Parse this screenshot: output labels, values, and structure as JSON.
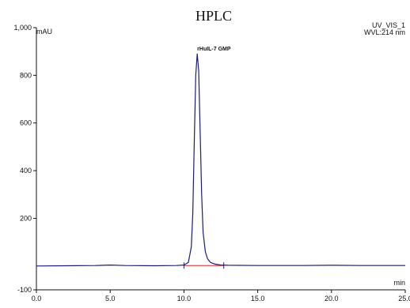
{
  "chart_data": {
    "type": "line",
    "title": "HPLC",
    "xlabel": "min",
    "ylabel": "mAU",
    "xlim": [
      0,
      25
    ],
    "ylim": [
      -100,
      1000
    ],
    "x_ticks": [
      0,
      5,
      10,
      15,
      20,
      25
    ],
    "x_tick_labels": [
      "0.0",
      "5.0",
      "10.0",
      "15.0",
      "20.0",
      "25.0"
    ],
    "y_ticks": [
      -100,
      200,
      400,
      600,
      800,
      1000
    ],
    "y_tick_labels": [
      "-100",
      "200",
      "400",
      "600",
      "800",
      "1,000"
    ],
    "channel_label": "UV_VIS_1",
    "wavelength_label": "WVL:214 nm",
    "peaks": [
      {
        "name": "rHuIL-7 GMP",
        "retention_time": 10.9,
        "height": 890
      }
    ],
    "baseline_range": [
      10.0,
      12.7
    ],
    "series": [
      {
        "values": [
          [
            0,
            0
          ],
          [
            2,
            1
          ],
          [
            4,
            2
          ],
          [
            5,
            4
          ],
          [
            6,
            2
          ],
          [
            8,
            1
          ],
          [
            9.5,
            2
          ],
          [
            10.0,
            4
          ],
          [
            10.3,
            15
          ],
          [
            10.5,
            80
          ],
          [
            10.6,
            220
          ],
          [
            10.7,
            520
          ],
          [
            10.8,
            800
          ],
          [
            10.9,
            890
          ],
          [
            11.0,
            820
          ],
          [
            11.1,
            560
          ],
          [
            11.2,
            300
          ],
          [
            11.3,
            140
          ],
          [
            11.45,
            60
          ],
          [
            11.6,
            30
          ],
          [
            11.8,
            15
          ],
          [
            12.1,
            8
          ],
          [
            12.5,
            4
          ],
          [
            13,
            3
          ],
          [
            15,
            2
          ],
          [
            18,
            2
          ],
          [
            20,
            3
          ],
          [
            22,
            2
          ],
          [
            25,
            2
          ]
        ]
      }
    ],
    "colors": {
      "trace": "#1c1c78",
      "baseline": "#e02020",
      "axis": "#111111"
    }
  }
}
